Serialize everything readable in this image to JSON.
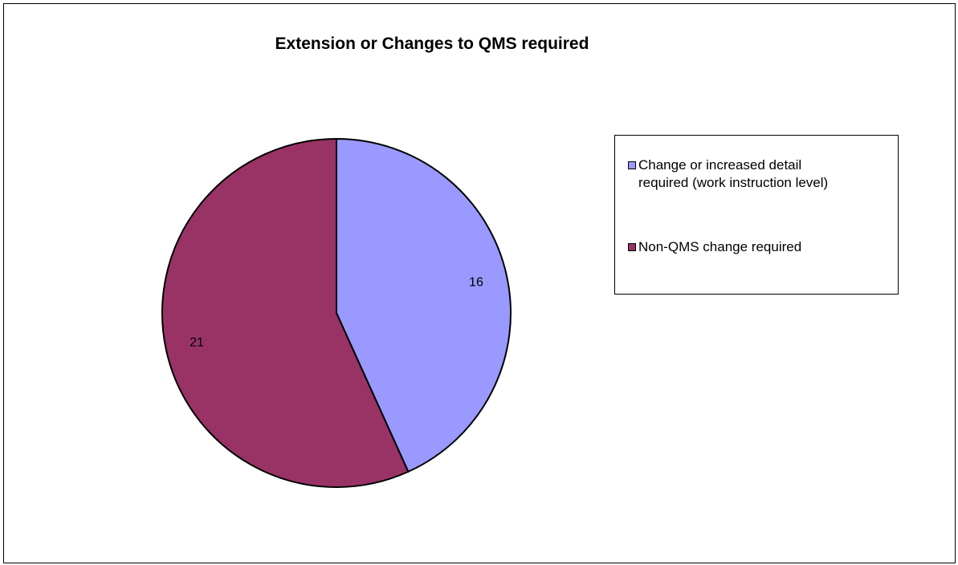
{
  "chart_data": {
    "type": "pie",
    "title": "Extension or Changes to QMS required",
    "slices": [
      {
        "label": "Change or increased detail\nrequired (work instruction level)",
        "value": 16,
        "color": "#9999ff"
      },
      {
        "label": "Non-QMS change required",
        "value": 21,
        "color": "#993366"
      }
    ],
    "data_labels": [
      "16",
      "21"
    ],
    "legend_position": "right",
    "start_angle_deg": 0,
    "direction": "clockwise"
  }
}
